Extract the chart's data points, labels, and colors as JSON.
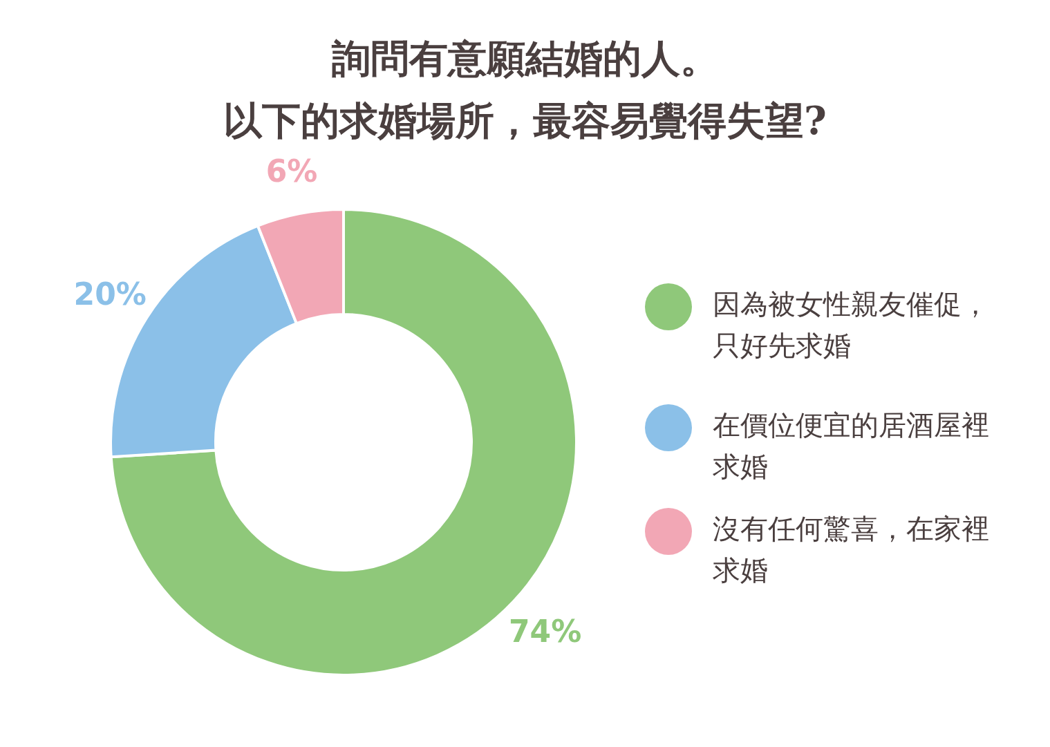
{
  "chart_data": {
    "type": "donut",
    "title": "詢問有意願結婚的人。",
    "subtitle": "以下的求婚場所，最容易覺得失望?",
    "categories": [
      "因為被女性親友催促，只好先求婚",
      "在價位便宜的居酒屋裡求婚",
      "沒有任何驚喜，在家裡求婚"
    ],
    "values": [
      74,
      20,
      6
    ],
    "colors": [
      "#8fc87a",
      "#8bc0e8",
      "#f2a7b5"
    ],
    "value_labels": [
      "74%",
      "20%",
      "6%"
    ],
    "legend": "right"
  }
}
